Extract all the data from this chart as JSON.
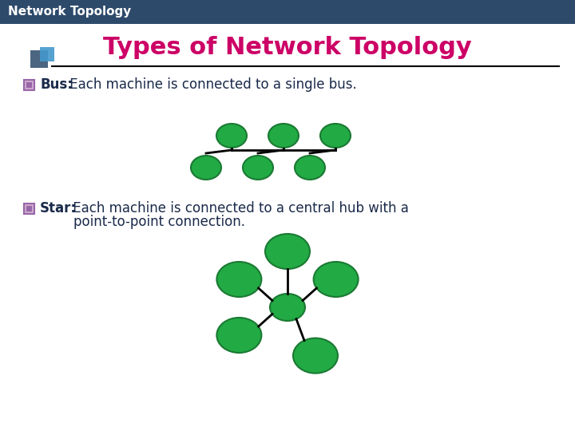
{
  "header_bg": "#2d4a6b",
  "header_text": "Network Topology",
  "header_text_color": "#ffffff",
  "header_fontsize": 11,
  "title_text": "Types of Network Topology",
  "title_color": "#cc0066",
  "title_fontsize": 22,
  "bg_color": "#ffffff",
  "line_color": "#000000",
  "node_color": "#22aa44",
  "node_edge_color": "#1a7a33",
  "body_text_color": "#1a2a4a",
  "bullet_color": "#9966aa",
  "bus_label": "Bus:",
  "bus_desc": " Each machine is connected to a single bus.",
  "star_label": "Star:",
  "star_desc": " Each machine is connected to a central hub with a\n        point-to-point connection.",
  "icon_sq1_color": "#2d4a6b",
  "icon_sq2_color": "#4499cc",
  "separator_color": "#000000"
}
